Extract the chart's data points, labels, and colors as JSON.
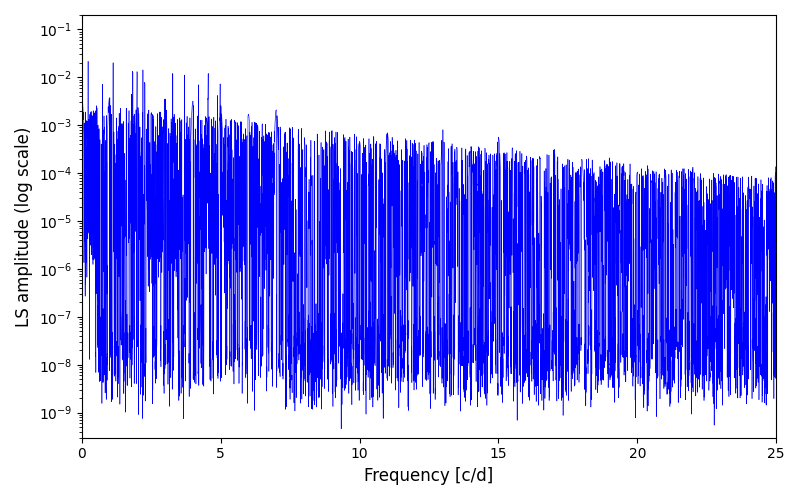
{
  "title": "",
  "xlabel": "Frequency [c/d]",
  "ylabel": "LS amplitude (log scale)",
  "xlim": [
    0,
    25
  ],
  "ylim": [
    3e-10,
    0.2
  ],
  "line_color": "#0000FF",
  "line_width": 0.4,
  "figsize": [
    8.0,
    5.0
  ],
  "dpi": 100,
  "freq_max": 25.0,
  "n_points": 8000,
  "seed": 17,
  "background_color": "#ffffff"
}
